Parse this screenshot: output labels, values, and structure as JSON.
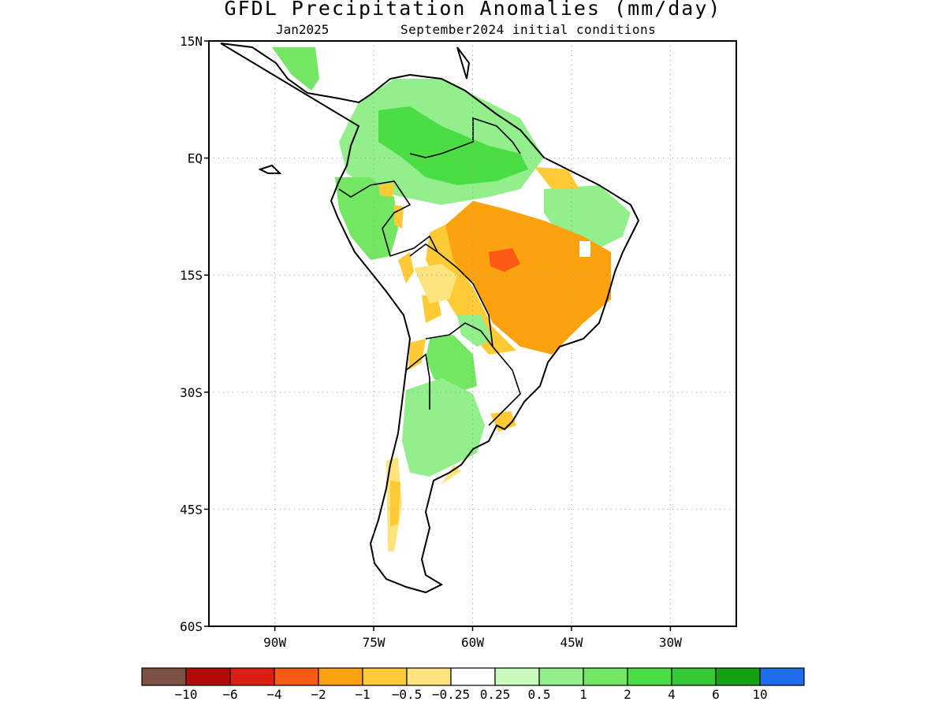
{
  "title": "GFDL Precipitation Anomalies (mm/day)",
  "subtitle_left": "Jan2025",
  "subtitle_right": "September2024 initial conditions",
  "map": {
    "lat_labels": [
      {
        "label": "15N",
        "lat": 15
      },
      {
        "label": "EQ",
        "lat": 0
      },
      {
        "label": "15S",
        "lat": -15
      },
      {
        "label": "30S",
        "lat": -30
      },
      {
        "label": "45S",
        "lat": -45
      },
      {
        "label": "60S",
        "lat": -60
      }
    ],
    "lon_labels": [
      {
        "label": "90W",
        "lon": -90
      },
      {
        "label": "75W",
        "lon": -75
      },
      {
        "label": "60W",
        "lon": -60
      },
      {
        "label": "45W",
        "lon": -45
      },
      {
        "label": "30W",
        "lon": -30
      }
    ],
    "lat_range": [
      -60,
      15
    ],
    "lon_range": [
      -100,
      -20
    ],
    "gridlines": true
  },
  "colorbar": {
    "colors": [
      "#7d5044",
      "#b40a0a",
      "#dc1e14",
      "#fa5a14",
      "#fda20f",
      "#feca36",
      "#ffe37d",
      "#ffffff",
      "#c8fbbc",
      "#93ef8c",
      "#73e763",
      "#4ade44",
      "#37c935",
      "#14a214",
      "#1e6eeb"
    ],
    "labels": [
      "−10",
      "−6",
      "−4",
      "−2",
      "−1",
      "−0.5",
      "−0.25",
      "0.25",
      "0.5",
      "1",
      "2",
      "4",
      "6",
      "10"
    ]
  },
  "anomaly_regions": [
    {
      "name": "northern-south-america-wet",
      "value": 2
    },
    {
      "name": "amazon-north-wet",
      "value": 4
    },
    {
      "name": "western-amazon-wet",
      "value": 2
    },
    {
      "name": "central-brazil-dry",
      "value": -2
    },
    {
      "name": "central-brazil-core-dry",
      "value": -4
    },
    {
      "name": "northeast-brazil-wet",
      "value": 1
    },
    {
      "name": "northeast-tip-dry",
      "value": -1
    },
    {
      "name": "andes-dry",
      "value": -1
    },
    {
      "name": "bolivia-dry",
      "value": -0.5
    },
    {
      "name": "paraguay-wet",
      "value": 2
    },
    {
      "name": "argentina-wet",
      "value": 1
    },
    {
      "name": "uruguay-dry",
      "value": -1
    },
    {
      "name": "patagonia-dry",
      "value": -0.5
    },
    {
      "name": "central-america-wet",
      "value": 1
    }
  ]
}
